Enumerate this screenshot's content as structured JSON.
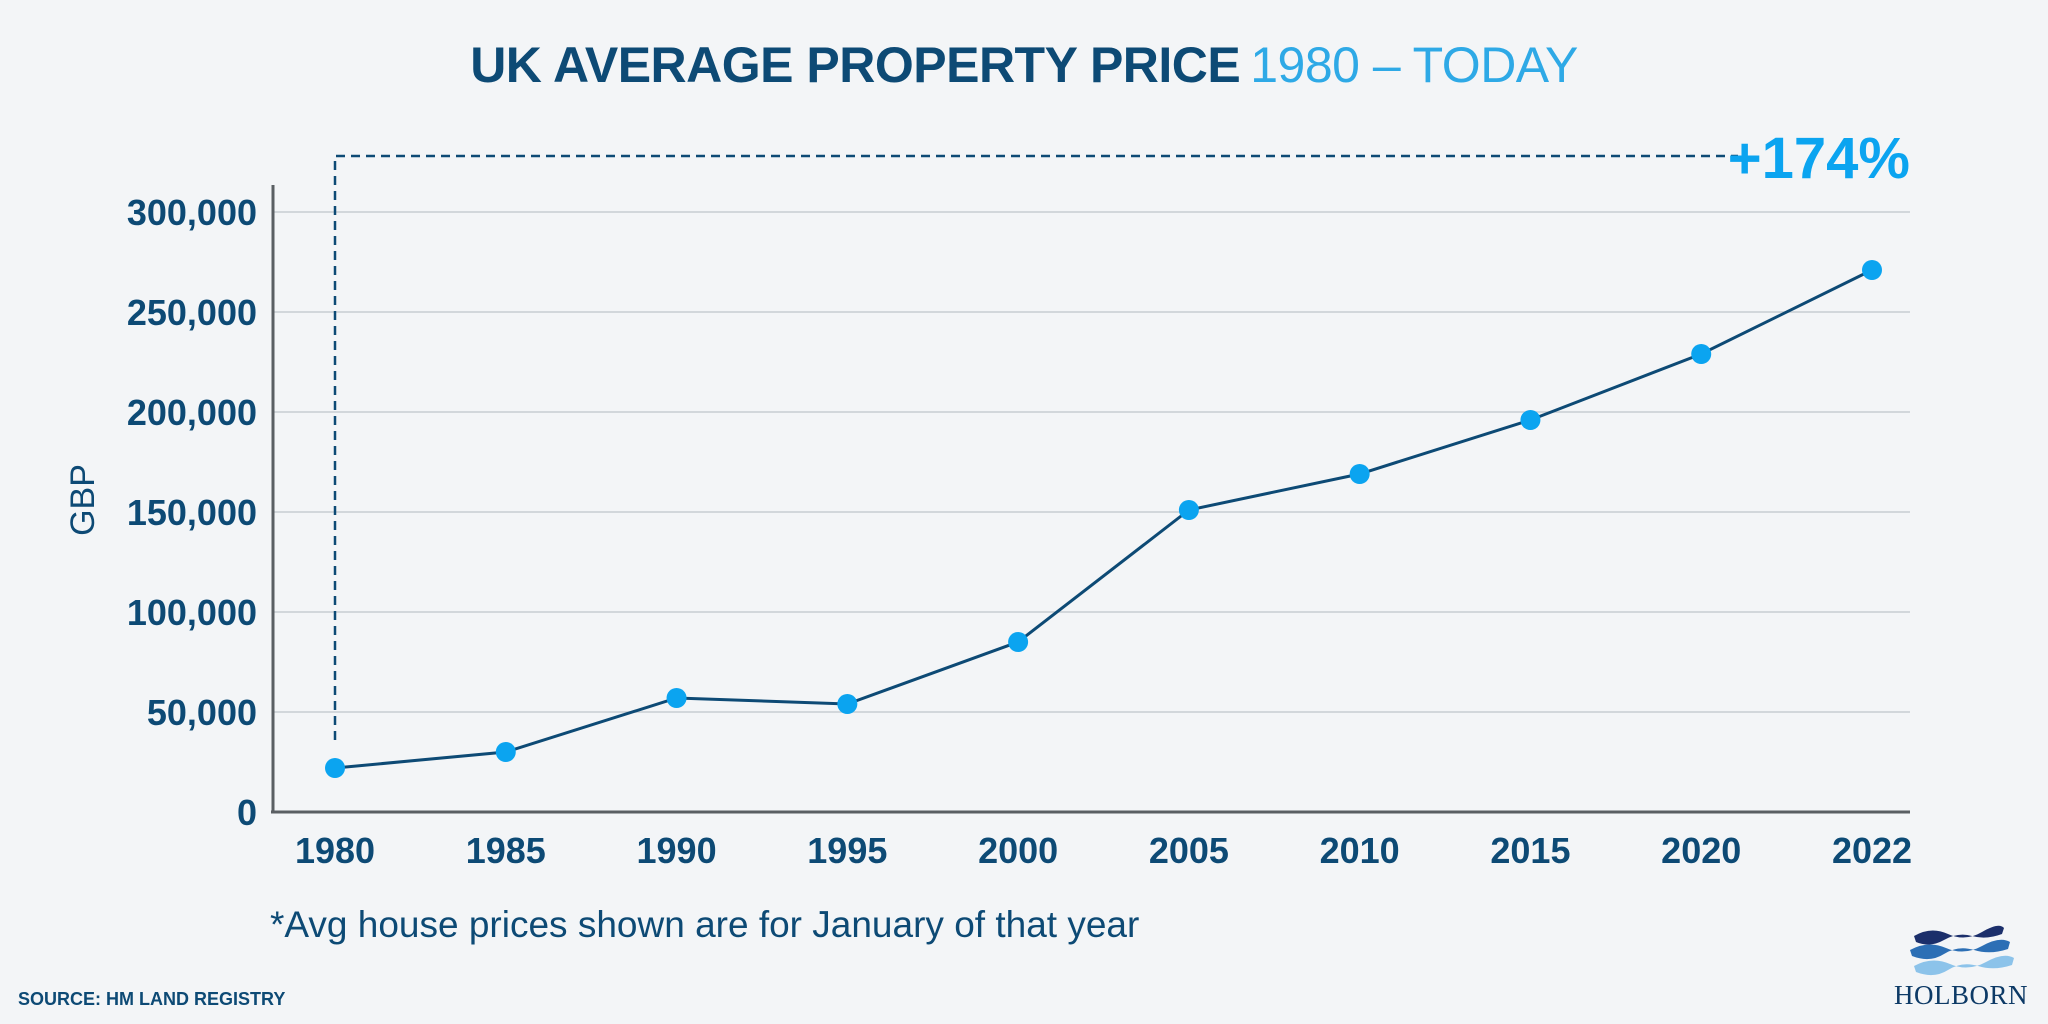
{
  "title": {
    "bold": "UK AVERAGE PROPERTY PRICE",
    "light": "1980 – TODAY"
  },
  "colors": {
    "navy": "#0d4a75",
    "accent": "#0ba4f0",
    "title_light": "#2ea9e6",
    "grid": "#c8cdd2",
    "axis": "#5a5f63",
    "background": "#f3f5f7"
  },
  "chart_data": {
    "type": "line",
    "title": "UK AVERAGE PROPERTY PRICE 1980 – TODAY",
    "xlabel": "",
    "ylabel": "GBP",
    "categories": [
      "1980",
      "1985",
      "1990",
      "1995",
      "2000",
      "2005",
      "2010",
      "2015",
      "2020",
      "2022"
    ],
    "series": [
      {
        "values": [
          22000,
          30000,
          57000,
          54000,
          85000,
          151000,
          169000,
          196000,
          229000,
          271000
        ]
      }
    ],
    "ylim": [
      0,
      300000
    ],
    "yticks": [
      0,
      50000,
      100000,
      150000,
      200000,
      250000,
      300000
    ],
    "ytick_labels": [
      "0",
      "50,000",
      "100,000",
      "150,000",
      "200,000",
      "250,000",
      "300,000"
    ],
    "grid": true,
    "annotation": "+174%"
  },
  "note": "*Avg house prices shown are for January of that year",
  "source": "SOURCE: HM LAND REGISTRY",
  "logo": {
    "text": "HOLBORN"
  }
}
